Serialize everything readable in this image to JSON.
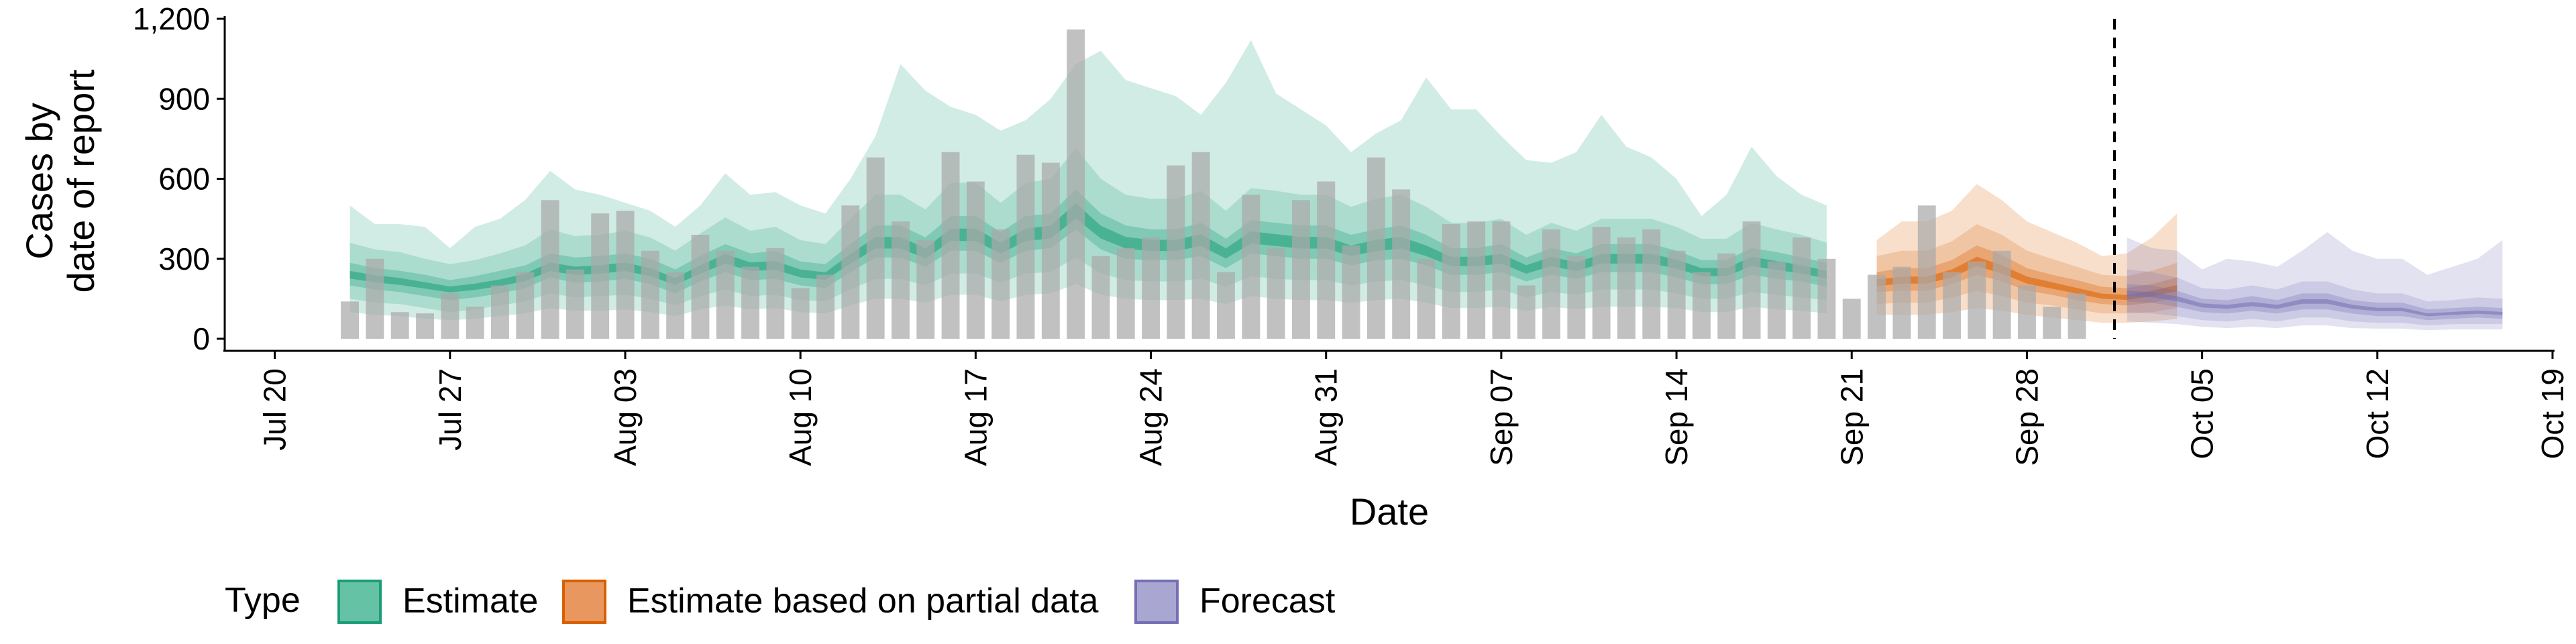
{
  "chart_data": {
    "type": "area",
    "xlabel": "Date",
    "ylabel": [
      "Cases by",
      "date of report"
    ],
    "ylim": [
      0,
      1200
    ],
    "yticks": [
      0,
      300,
      600,
      900,
      1200
    ],
    "ytick_labels": [
      "0",
      "300",
      "600",
      "900",
      "1,200"
    ],
    "xlim": [
      "2020-07-18",
      "2020-10-19"
    ],
    "xticks": [
      "2020-07-20",
      "2020-07-27",
      "2020-08-03",
      "2020-08-10",
      "2020-08-17",
      "2020-08-24",
      "2020-08-31",
      "2020-09-07",
      "2020-09-14",
      "2020-09-21",
      "2020-09-28",
      "2020-10-05",
      "2020-10-12",
      "2020-10-19"
    ],
    "xtick_labels": [
      "Jul 20",
      "Jul 27",
      "Aug 03",
      "Aug 10",
      "Aug 17",
      "Aug 24",
      "Aug 31",
      "Sep 07",
      "Sep 14",
      "Sep 21",
      "Sep 28",
      "Oct 05",
      "Oct 12",
      "Oct 19"
    ],
    "forecast_line_date": "2020-10-01",
    "grid": false,
    "legend": {
      "title": "Type",
      "placement": "bottom",
      "entries": [
        {
          "label": "Estimate",
          "color": "#66c2a5",
          "border": "#1b9e77"
        },
        {
          "label": "Estimate based on partial data",
          "color": "#e8975e",
          "border": "#d95f02"
        },
        {
          "label": "Forecast",
          "color": "#a9a6d2",
          "border": "#7570b3"
        }
      ]
    },
    "colors": {
      "estimate": "#1b9e77",
      "partial": "#d95f02",
      "forecast": "#7570b3",
      "bars": "#a9a9a9"
    },
    "reported_cases": {
      "start": "2020-07-23",
      "values": [
        140,
        300,
        100,
        95,
        170,
        120,
        200,
        250,
        520,
        260,
        470,
        480,
        330,
        250,
        390,
        330,
        270,
        340,
        190,
        240,
        500,
        680,
        440,
        370,
        700,
        590,
        410,
        690,
        660,
        1160,
        310,
        340,
        380,
        650,
        700,
        250,
        540,
        340,
        520,
        590,
        350,
        680,
        560,
        300,
        430,
        440,
        440,
        200,
        410,
        310,
        420,
        380,
        410,
        330,
        250,
        320,
        440,
        290,
        380,
        300,
        150,
        240,
        270,
        500,
        250,
        290,
        330,
        200,
        120,
        170
      ]
    },
    "series": [
      {
        "name": "Estimate",
        "start": "2020-07-23",
        "median": [
          240,
          225,
          215,
          200,
          185,
          195,
          210,
          230,
          270,
          255,
          260,
          270,
          250,
          215,
          260,
          300,
          270,
          275,
          245,
          235,
          300,
          360,
          360,
          320,
          390,
          390,
          340,
          390,
          400,
          480,
          400,
          360,
          350,
          350,
          370,
          320,
          380,
          370,
          360,
          360,
          330,
          350,
          360,
          330,
          290,
          290,
          300,
          260,
          290,
          270,
          300,
          300,
          300,
          280,
          250,
          250,
          290,
          275,
          260,
          240
        ],
        "lower50": [
          200,
          185,
          175,
          160,
          145,
          155,
          170,
          190,
          230,
          210,
          215,
          225,
          205,
          170,
          215,
          250,
          220,
          225,
          200,
          190,
          250,
          305,
          305,
          270,
          330,
          330,
          285,
          330,
          340,
          410,
          335,
          300,
          295,
          295,
          310,
          265,
          320,
          310,
          300,
          300,
          275,
          295,
          300,
          275,
          240,
          240,
          250,
          215,
          240,
          225,
          250,
          250,
          250,
          230,
          205,
          205,
          240,
          225,
          215,
          195
        ],
        "upper50": [
          285,
          265,
          255,
          240,
          220,
          235,
          255,
          275,
          320,
          305,
          310,
          320,
          300,
          260,
          310,
          355,
          320,
          330,
          290,
          280,
          355,
          425,
          425,
          380,
          460,
          460,
          400,
          460,
          470,
          560,
          470,
          425,
          410,
          410,
          435,
          375,
          445,
          435,
          425,
          425,
          390,
          410,
          425,
          390,
          340,
          340,
          355,
          305,
          340,
          320,
          355,
          355,
          355,
          330,
          295,
          295,
          340,
          325,
          305,
          285
        ],
        "lower90": [
          150,
          135,
          130,
          115,
          100,
          110,
          125,
          140,
          170,
          155,
          160,
          165,
          150,
          125,
          160,
          185,
          160,
          165,
          145,
          140,
          185,
          225,
          225,
          200,
          245,
          245,
          210,
          245,
          250,
          305,
          245,
          220,
          215,
          215,
          225,
          195,
          235,
          225,
          220,
          220,
          200,
          215,
          220,
          200,
          175,
          175,
          185,
          155,
          175,
          165,
          185,
          185,
          185,
          170,
          150,
          150,
          175,
          165,
          155,
          145
        ],
        "upper90": [
          360,
          335,
          325,
          300,
          280,
          295,
          320,
          350,
          410,
          385,
          390,
          405,
          380,
          330,
          395,
          455,
          405,
          420,
          370,
          355,
          450,
          540,
          540,
          485,
          585,
          585,
          510,
          585,
          600,
          715,
          600,
          540,
          525,
          525,
          555,
          480,
          565,
          555,
          540,
          540,
          495,
          525,
          540,
          495,
          435,
          435,
          450,
          390,
          435,
          405,
          450,
          450,
          450,
          420,
          375,
          375,
          435,
          410,
          390,
          360
        ],
        "lower_outer": [
          100,
          90,
          85,
          75,
          70,
          75,
          85,
          95,
          115,
          105,
          105,
          110,
          100,
          85,
          110,
          125,
          110,
          115,
          100,
          95,
          125,
          150,
          150,
          135,
          165,
          165,
          140,
          165,
          170,
          205,
          165,
          150,
          145,
          145,
          150,
          130,
          160,
          150,
          145,
          145,
          135,
          145,
          150,
          135,
          115,
          115,
          120,
          105,
          120,
          110,
          120,
          120,
          120,
          115,
          100,
          100,
          120,
          110,
          105,
          95
        ],
        "upper_outer": [
          500,
          430,
          430,
          420,
          340,
          420,
          450,
          520,
          630,
          560,
          540,
          510,
          480,
          420,
          500,
          620,
          540,
          550,
          500,
          470,
          600,
          760,
          1030,
          930,
          870,
          840,
          780,
          820,
          900,
          1030,
          1080,
          970,
          940,
          910,
          840,
          960,
          1120,
          920,
          860,
          800,
          700,
          770,
          820,
          980,
          860,
          860,
          760,
          670,
          660,
          700,
          840,
          720,
          680,
          600,
          460,
          540,
          720,
          610,
          540,
          500
        ]
      },
      {
        "name": "Estimate based on partial data",
        "start": "2020-09-22",
        "median": [
          210,
          220,
          220,
          245,
          290,
          260,
          220,
          200,
          180,
          160,
          155,
          170,
          190
        ],
        "lower50": [
          175,
          180,
          180,
          205,
          240,
          215,
          180,
          165,
          145,
          130,
          125,
          135,
          155
        ],
        "upper50": [
          250,
          265,
          265,
          295,
          350,
          315,
          265,
          240,
          220,
          195,
          190,
          205,
          230
        ],
        "lower90": [
          130,
          135,
          135,
          155,
          180,
          160,
          135,
          125,
          110,
          95,
          95,
          100,
          115
        ],
        "upper90": [
          310,
          330,
          330,
          365,
          430,
          390,
          330,
          300,
          270,
          240,
          235,
          255,
          285
        ],
        "lower_outer": [
          90,
          90,
          90,
          100,
          115,
          105,
          90,
          80,
          70,
          60,
          60,
          65,
          75
        ],
        "upper_outer": [
          370,
          440,
          440,
          480,
          580,
          520,
          440,
          400,
          360,
          310,
          320,
          380,
          470
        ]
      },
      {
        "name": "Forecast",
        "start": "2020-10-02",
        "median": [
          170,
          165,
          150,
          125,
          120,
          130,
          120,
          140,
          140,
          120,
          110,
          110,
          90,
          95,
          100,
          95
        ],
        "lower50": [
          140,
          135,
          120,
          100,
          95,
          105,
          95,
          110,
          110,
          95,
          85,
          85,
          70,
          75,
          80,
          75
        ],
        "upper50": [
          205,
          200,
          180,
          150,
          145,
          160,
          145,
          170,
          170,
          145,
          135,
          135,
          110,
          115,
          120,
          115
        ],
        "lower90": [
          100,
          95,
          85,
          70,
          65,
          75,
          65,
          80,
          80,
          65,
          60,
          60,
          50,
          55,
          55,
          55
        ],
        "upper90": [
          260,
          250,
          230,
          190,
          185,
          200,
          185,
          215,
          215,
          185,
          170,
          170,
          140,
          145,
          155,
          150
        ],
        "lower_outer": [
          65,
          60,
          55,
          45,
          40,
          45,
          40,
          50,
          50,
          40,
          38,
          38,
          32,
          35,
          35,
          35
        ],
        "upper_outer": [
          380,
          340,
          330,
          260,
          300,
          290,
          270,
          330,
          400,
          330,
          300,
          300,
          240,
          270,
          300,
          370
        ]
      }
    ]
  }
}
